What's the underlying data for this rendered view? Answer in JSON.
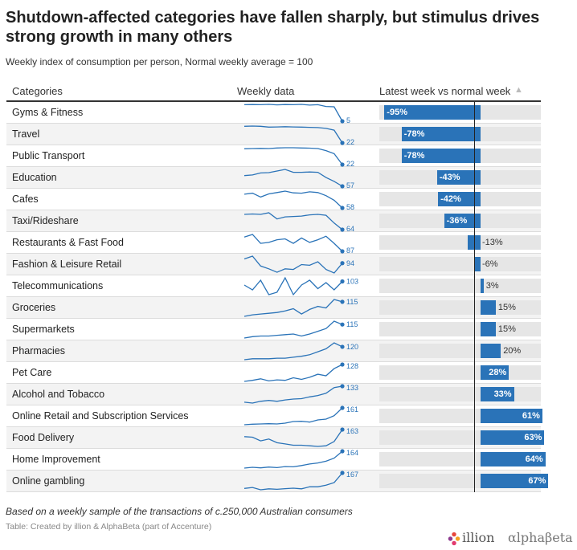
{
  "title": "Shutdown-affected categories have fallen sharply, but stimulus drives strong growth in many others",
  "subtitle": "Weekly index of consumption per person, Normal weekly average = 100",
  "headers": {
    "categories": "Categories",
    "weekly": "Weekly data",
    "latest": "Latest week vs normal week",
    "sort_icon": "▲"
  },
  "footer": {
    "note": "Based on a weekly sample of the transactions of c.250,000 Australian consumers",
    "source": "Table: Created by illion & AlphaBeta (part of Accenture)"
  },
  "logos": {
    "illion": "illion",
    "alphabeta": "αlphaβeta"
  },
  "colors": {
    "bar": "#2a73b8",
    "bar_background": "#e6e6e6",
    "spark_line": "#2a73b8"
  },
  "chart_data": {
    "type": "table",
    "columns": [
      "Categories",
      "Weekly data",
      "Latest week vs normal week"
    ],
    "bar_range": [
      -100,
      70
    ],
    "rows": [
      {
        "category": "Gyms & Fitness",
        "latest_index": 5,
        "change_pct": -95,
        "change_label": "-95%",
        "spark": [
          100,
          101,
          100,
          102,
          99,
          101,
          100,
          102,
          98,
          100,
          90,
          88,
          5
        ]
      },
      {
        "category": "Travel",
        "latest_index": 22,
        "change_pct": -78,
        "change_label": "-78%",
        "spark": [
          100,
          101,
          100,
          96,
          97,
          98,
          97,
          96,
          95,
          94,
          90,
          82,
          22
        ]
      },
      {
        "category": "Public Transport",
        "latest_index": 22,
        "change_pct": -78,
        "change_label": "-78%",
        "spark": [
          99,
          100,
          101,
          100,
          103,
          104,
          104,
          103,
          102,
          100,
          90,
          75,
          22
        ]
      },
      {
        "category": "Education",
        "latest_index": 57,
        "change_pct": -43,
        "change_label": "-43%",
        "spark": [
          90,
          92,
          98,
          99,
          104,
          109,
          100,
          100,
          101,
          100,
          84,
          72,
          57
        ]
      },
      {
        "category": "Cafes",
        "latest_index": 58,
        "change_pct": -42,
        "change_label": "-42%",
        "spark": [
          97,
          100,
          89,
          98,
          102,
          106,
          101,
          100,
          104,
          102,
          93,
          80,
          58
        ]
      },
      {
        "category": "Taxi/Rideshare",
        "latest_index": 64,
        "change_pct": -36,
        "change_label": "-36%",
        "spark": [
          101,
          102,
          101,
          105,
          90,
          95,
          96,
          97,
          100,
          101,
          99,
          80,
          64
        ]
      },
      {
        "category": "Restaurants & Fast Food",
        "latest_index": 87,
        "change_pct": -13,
        "change_label": "-13%",
        "spark": [
          103,
          106,
          96,
          97,
          100,
          101,
          96,
          102,
          97,
          100,
          104,
          96,
          87
        ]
      },
      {
        "category": "Fashion & Leisure Retail",
        "latest_index": 94,
        "change_pct": -6,
        "change_label": "-6%",
        "spark": [
          100,
          104,
          90,
          86,
          81,
          86,
          85,
          92,
          91,
          96,
          85,
          80,
          94
        ]
      },
      {
        "category": "Telecommunications",
        "latest_index": 103,
        "change_pct": 3,
        "change_label": "3%",
        "spark": [
          100,
          96,
          104,
          92,
          94,
          106,
          92,
          100,
          104,
          97,
          102,
          96,
          103
        ]
      },
      {
        "category": "Groceries",
        "latest_index": 115,
        "change_pct": 15,
        "change_label": "15%",
        "spark": [
          96,
          98,
          99,
          100,
          101,
          103,
          106,
          99,
          105,
          109,
          107,
          118,
          115
        ]
      },
      {
        "category": "Supermarkets",
        "latest_index": 115,
        "change_pct": 15,
        "change_label": "15%",
        "spark": [
          95,
          97,
          98,
          98,
          99,
          100,
          101,
          98,
          101,
          105,
          109,
          120,
          115
        ]
      },
      {
        "category": "Pharmacies",
        "latest_index": 120,
        "change_pct": 20,
        "change_label": "20%",
        "spark": [
          94,
          96,
          96,
          96,
          97,
          97,
          99,
          101,
          104,
          110,
          116,
          128,
          120
        ]
      },
      {
        "category": "Pet Care",
        "latest_index": 128,
        "change_pct": 28,
        "change_label": "28%",
        "spark": [
          95,
          97,
          100,
          96,
          98,
          97,
          102,
          99,
          103,
          109,
          106,
          120,
          128
        ]
      },
      {
        "category": "Alcohol and Tobacco",
        "latest_index": 133,
        "change_pct": 33,
        "change_label": "33%",
        "spark": [
          97,
          95,
          99,
          101,
          99,
          102,
          104,
          105,
          109,
          112,
          117,
          130,
          133
        ]
      },
      {
        "category": "Online Retail and Subscription Services",
        "latest_index": 161,
        "change_pct": 61,
        "change_label": "61%",
        "spark": [
          98,
          100,
          101,
          102,
          101,
          104,
          110,
          111,
          108,
          116,
          119,
          132,
          161
        ]
      },
      {
        "category": "Food Delivery",
        "latest_index": 163,
        "change_pct": 63,
        "change_label": "63%",
        "spark": [
          140,
          138,
          126,
          132,
          120,
          116,
          112,
          112,
          110,
          108,
          110,
          124,
          163
        ]
      },
      {
        "category": "Home Improvement",
        "latest_index": 164,
        "change_pct": 64,
        "change_label": "64%",
        "spark": [
          98,
          101,
          99,
          102,
          100,
          104,
          103,
          108,
          114,
          118,
          125,
          137,
          164
        ]
      },
      {
        "category": "Online gambling",
        "latest_index": 167,
        "change_pct": 67,
        "change_label": "67%",
        "spark": [
          100,
          104,
          94,
          98,
          96,
          99,
          101,
          98,
          107,
          107,
          114,
          125,
          167
        ]
      }
    ]
  }
}
